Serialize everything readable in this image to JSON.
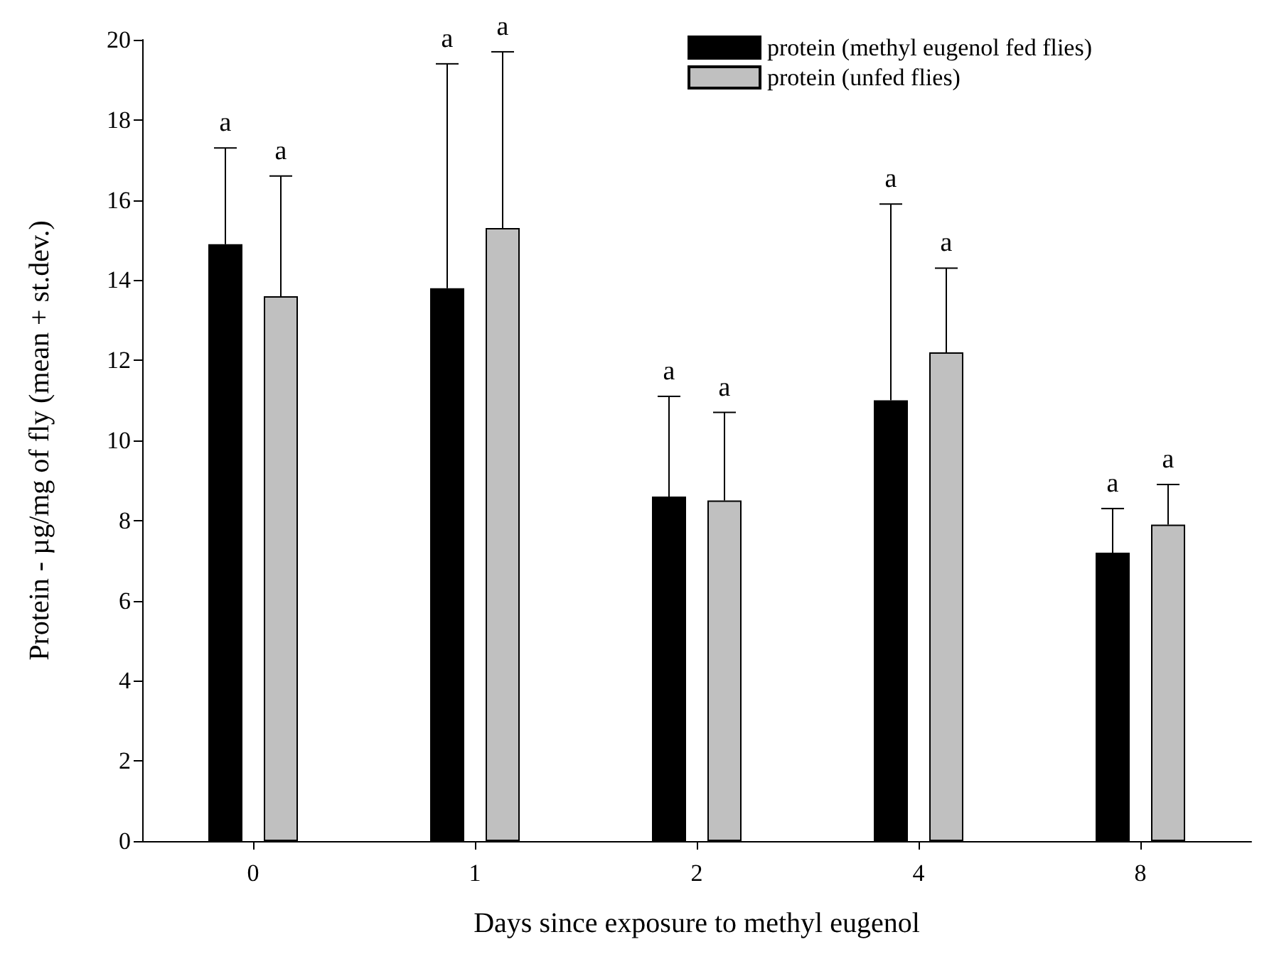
{
  "chart_data": {
    "type": "bar",
    "xlabel": "Days since exposure to methyl eugenol",
    "ylabel": "Protein - µg/mg of fly (mean + st.dev.)",
    "categories": [
      "0",
      "1",
      "2",
      "4",
      "8"
    ],
    "series": [
      {
        "name": "protein (methyl eugenol fed flies)",
        "color": "#000000",
        "values": [
          14.9,
          13.8,
          8.6,
          11.0,
          7.2
        ],
        "errors": [
          [
            14.9,
            17.3
          ],
          [
            13.8,
            19.4
          ],
          [
            8.6,
            11.1
          ],
          [
            11.0,
            15.9
          ],
          [
            7.2,
            8.3
          ]
        ]
      },
      {
        "name": "protein (unfed flies)",
        "color": "#c0c0c0",
        "values": [
          13.6,
          15.3,
          8.5,
          12.2,
          7.9
        ],
        "errors": [
          [
            13.6,
            16.6
          ],
          [
            15.3,
            19.7
          ],
          [
            8.5,
            10.7
          ],
          [
            12.2,
            14.3
          ],
          [
            7.9,
            8.9
          ]
        ]
      }
    ],
    "ylim": [
      0,
      20
    ],
    "yticks": [
      0,
      2,
      4,
      6,
      8,
      10,
      12,
      14,
      16,
      18,
      20
    ],
    "grid": false,
    "legend": "top right",
    "annotations": [
      "a",
      "a",
      "a",
      "a",
      "a",
      "a",
      "a",
      "a",
      "a",
      "a"
    ]
  }
}
